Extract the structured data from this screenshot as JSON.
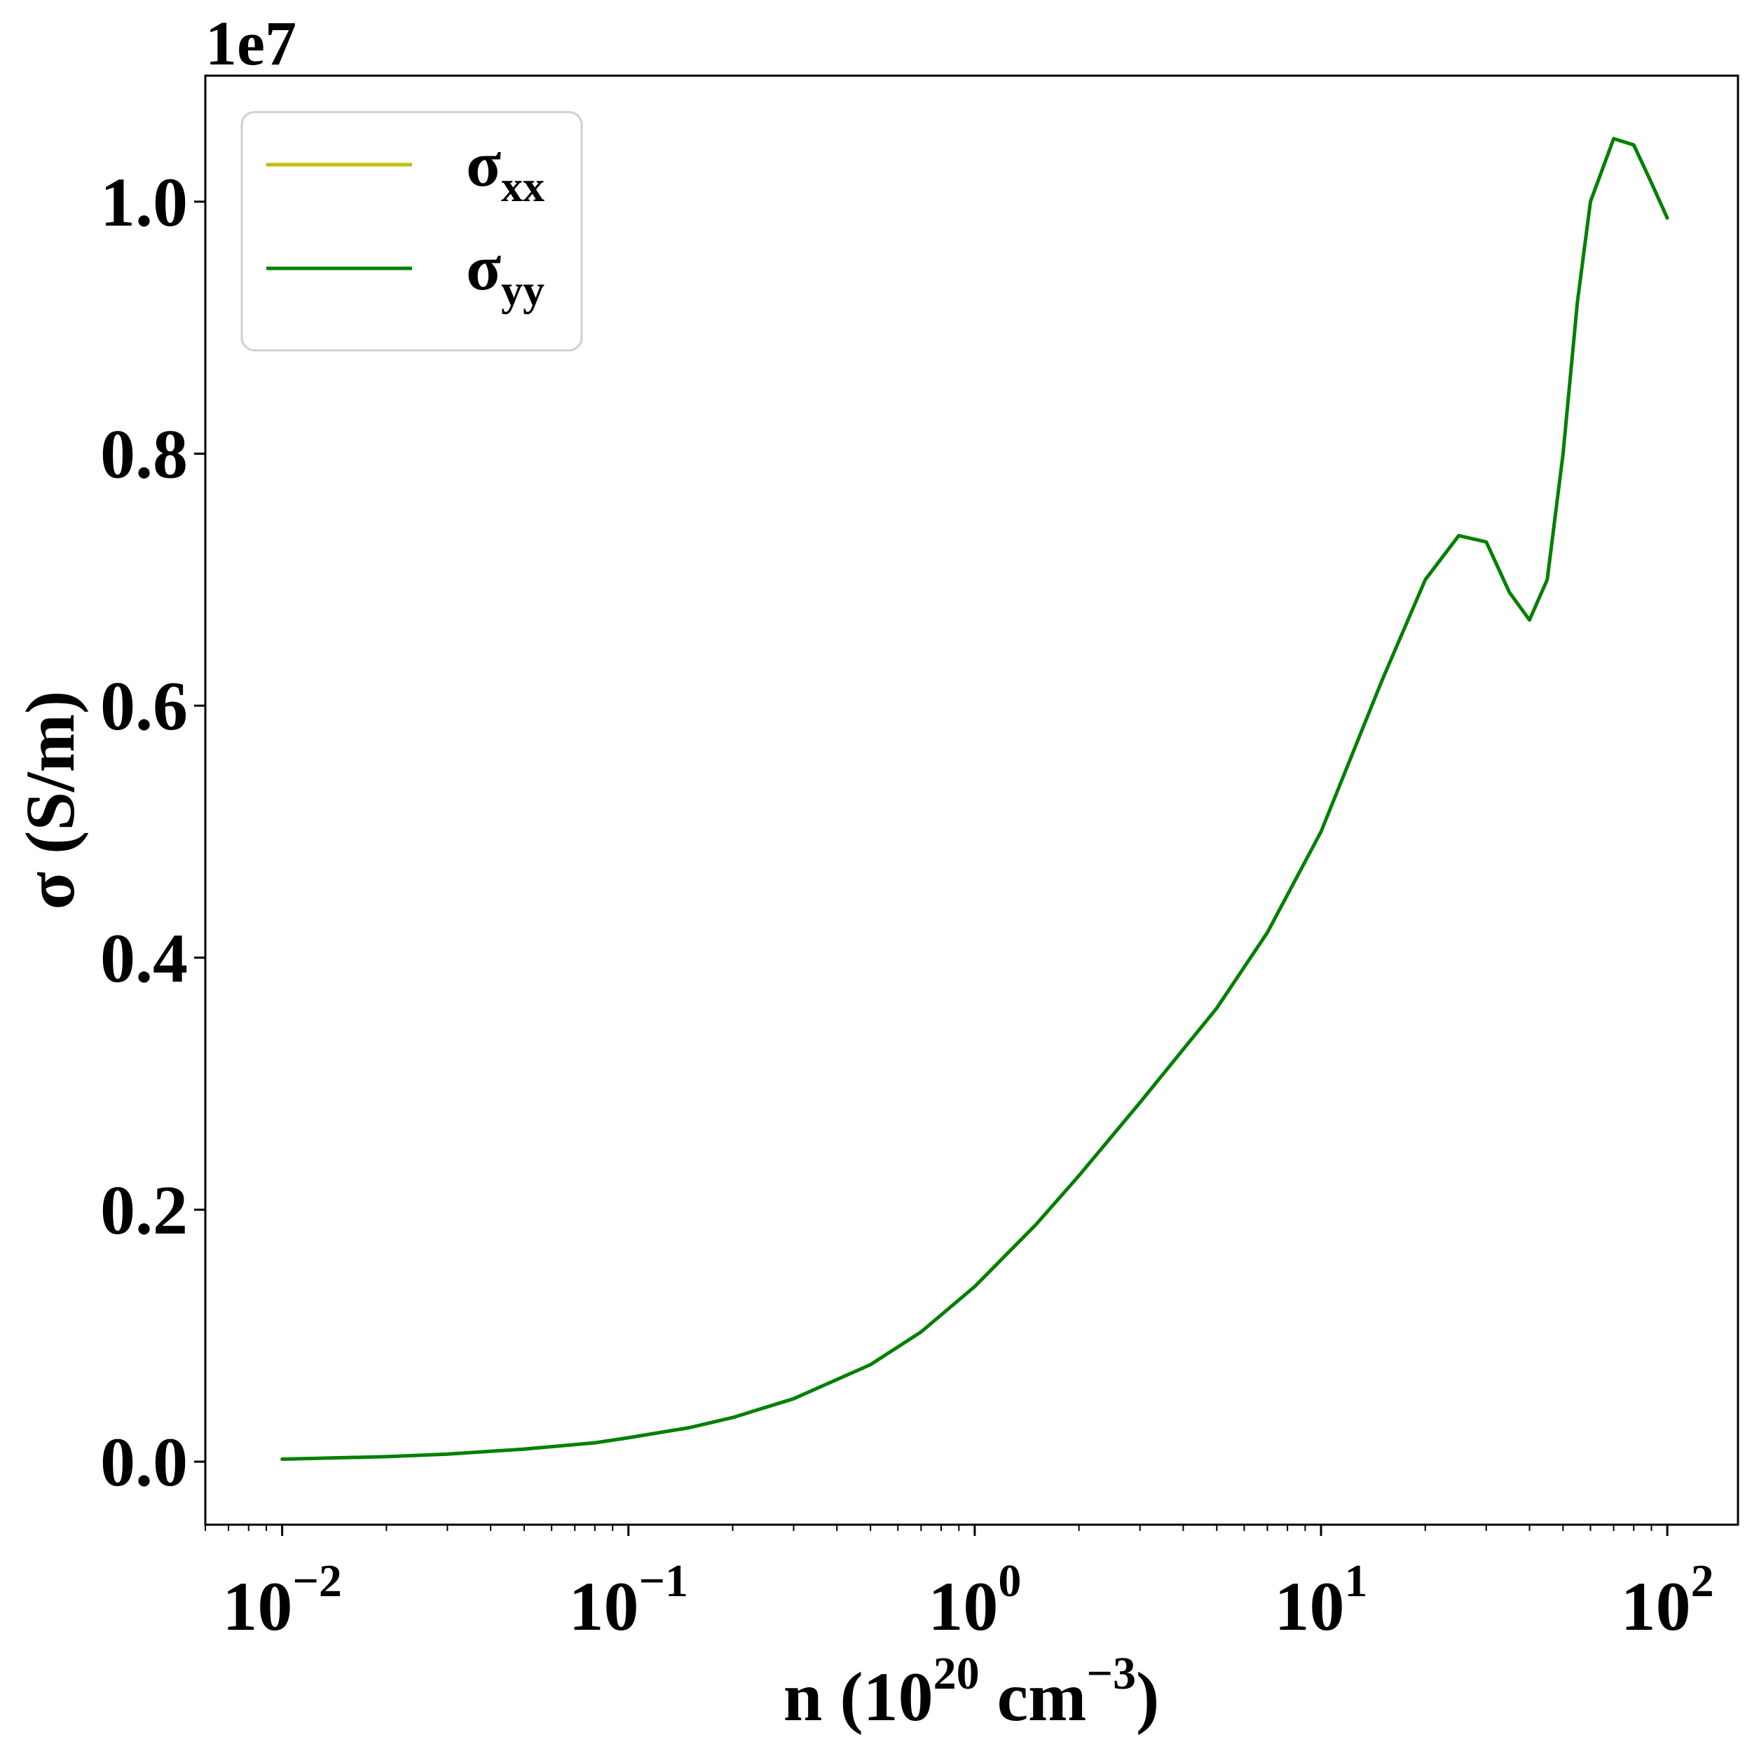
{
  "chart_data": {
    "type": "line",
    "xscale": "log",
    "xlim": [
      0.006,
      160
    ],
    "ylim": [
      -0.05,
      1.1
    ],
    "y_offset_label": "1e7",
    "x_ticks": [
      {
        "value": 0.01,
        "base": "10",
        "exp": "−2"
      },
      {
        "value": 0.1,
        "base": "10",
        "exp": "−1"
      },
      {
        "value": 1,
        "base": "10",
        "exp": "0"
      },
      {
        "value": 10,
        "base": "10",
        "exp": "1"
      },
      {
        "value": 100,
        "base": "10",
        "exp": "2"
      }
    ],
    "y_ticks": [
      "0.0",
      "0.2",
      "0.4",
      "0.6",
      "0.8",
      "1.0"
    ],
    "xlabel": {
      "main": "n (10",
      "sup1": "20",
      "mid": " cm",
      "sup2": "−3",
      "end": ")"
    },
    "ylabel": "σ (S/m)",
    "legend": {
      "placement": "upper-left"
    },
    "series": [
      {
        "name": {
          "base": "σ",
          "sub": "xx"
        },
        "color": "#bfbf00",
        "points": [
          [
            0.01,
            0.002
          ],
          [
            0.02,
            0.004
          ],
          [
            0.03,
            0.006
          ],
          [
            0.05,
            0.01
          ],
          [
            0.08,
            0.015
          ],
          [
            0.1,
            0.019
          ],
          [
            0.15,
            0.027
          ],
          [
            0.2,
            0.035
          ],
          [
            0.3,
            0.05
          ],
          [
            0.5,
            0.077
          ],
          [
            0.7,
            0.103
          ],
          [
            1.0,
            0.139
          ],
          [
            1.5,
            0.188
          ],
          [
            2.0,
            0.227
          ],
          [
            3.0,
            0.285
          ],
          [
            5.0,
            0.36
          ],
          [
            7.0,
            0.42
          ],
          [
            10.0,
            0.5
          ],
          [
            15.0,
            0.62
          ],
          [
            20.0,
            0.7
          ],
          [
            25.0,
            0.735
          ],
          [
            30.0,
            0.73
          ],
          [
            35.0,
            0.69
          ],
          [
            40.0,
            0.668
          ],
          [
            45.0,
            0.7
          ],
          [
            50.0,
            0.8
          ],
          [
            55.0,
            0.92
          ],
          [
            60.0,
            1.0
          ],
          [
            70.0,
            1.05
          ],
          [
            80.0,
            1.045
          ],
          [
            90.0,
            1.015
          ],
          [
            100.0,
            0.987
          ]
        ]
      },
      {
        "name": {
          "base": "σ",
          "sub": "yy"
        },
        "color": "#008000",
        "points": [
          [
            0.01,
            0.002
          ],
          [
            0.02,
            0.004
          ],
          [
            0.03,
            0.006
          ],
          [
            0.05,
            0.01
          ],
          [
            0.08,
            0.015
          ],
          [
            0.1,
            0.019
          ],
          [
            0.15,
            0.027
          ],
          [
            0.2,
            0.035
          ],
          [
            0.3,
            0.05
          ],
          [
            0.5,
            0.077
          ],
          [
            0.7,
            0.103
          ],
          [
            1.0,
            0.139
          ],
          [
            1.5,
            0.188
          ],
          [
            2.0,
            0.227
          ],
          [
            3.0,
            0.285
          ],
          [
            5.0,
            0.36
          ],
          [
            7.0,
            0.42
          ],
          [
            10.0,
            0.5
          ],
          [
            15.0,
            0.62
          ],
          [
            20.0,
            0.7
          ],
          [
            25.0,
            0.735
          ],
          [
            30.0,
            0.73
          ],
          [
            35.0,
            0.69
          ],
          [
            40.0,
            0.668
          ],
          [
            45.0,
            0.7
          ],
          [
            50.0,
            0.8
          ],
          [
            55.0,
            0.92
          ],
          [
            60.0,
            1.0
          ],
          [
            70.0,
            1.05
          ],
          [
            80.0,
            1.045
          ],
          [
            90.0,
            1.015
          ],
          [
            100.0,
            0.987
          ]
        ]
      }
    ]
  }
}
